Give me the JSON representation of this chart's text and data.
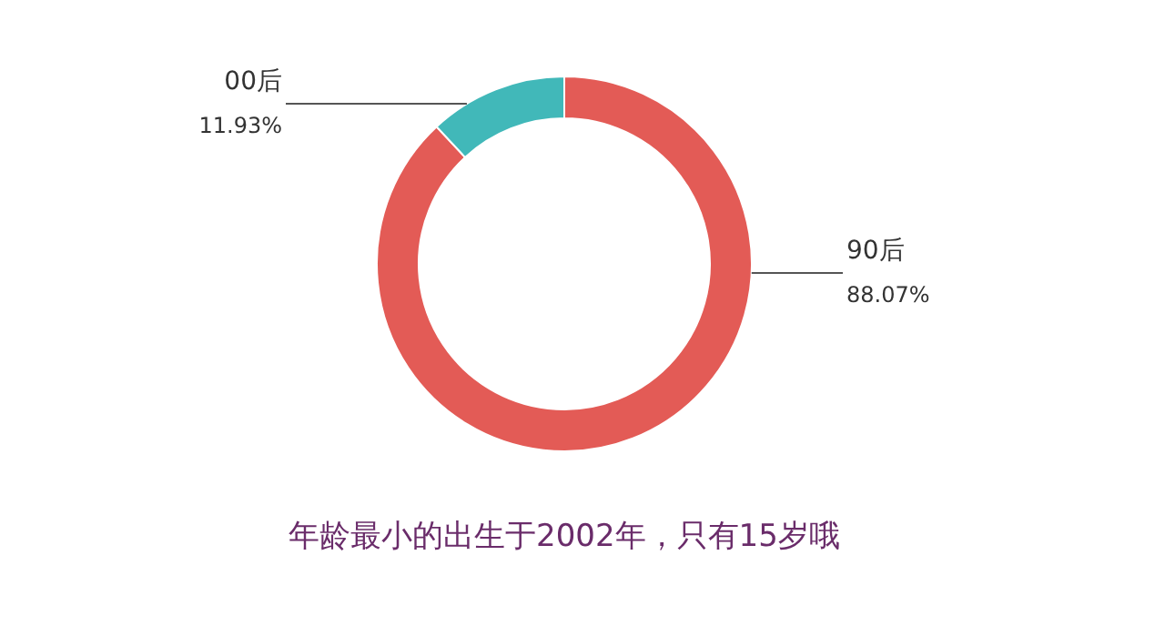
{
  "chart_data": {
    "type": "donut",
    "title": "年龄最小的出生于2002年，只有15岁哦",
    "categories": [
      "90后",
      "00后"
    ],
    "values": [
      88.07,
      11.93
    ],
    "colors": [
      "#e35b56",
      "#41b8b9"
    ],
    "value_labels": [
      "88.07%",
      "11.93%"
    ]
  }
}
